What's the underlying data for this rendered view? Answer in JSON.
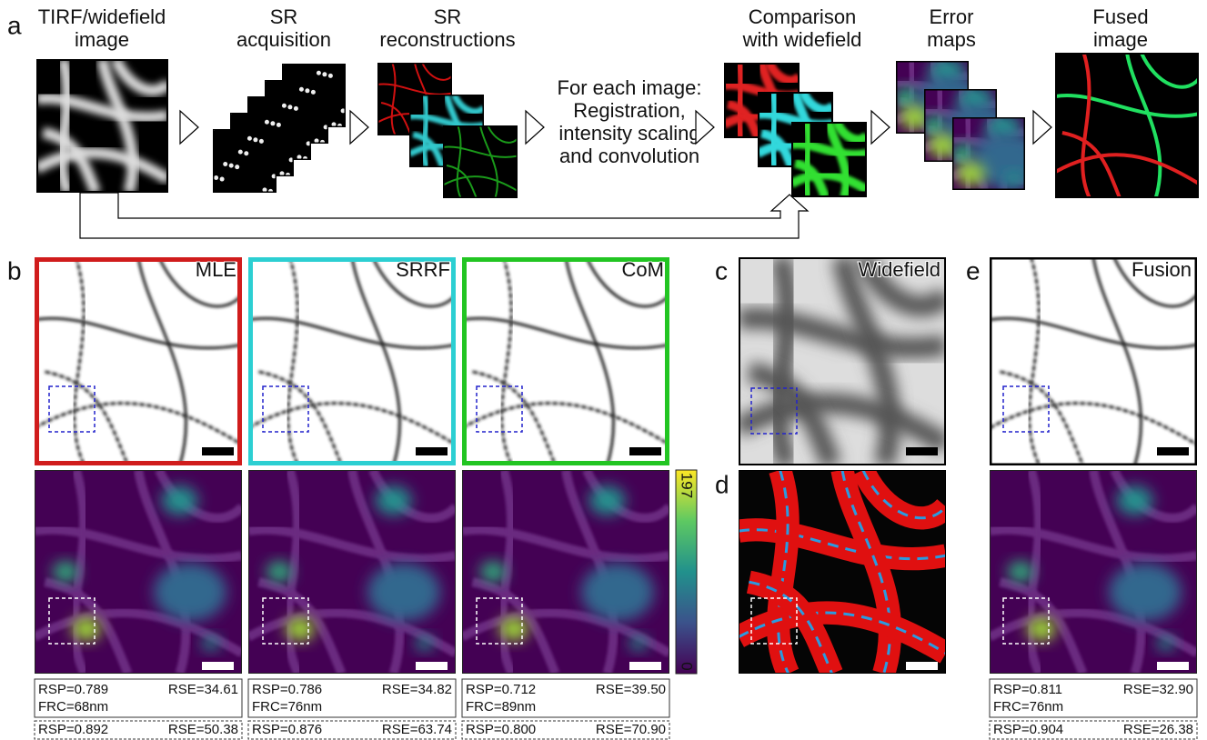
{
  "panel_a": {
    "label": "a",
    "steps": [
      [
        "TIRF/widefield",
        "image"
      ],
      [
        "SR",
        "acquisition"
      ],
      [
        "SR",
        "reconstructions"
      ],
      [
        "For each image:",
        "Registration,",
        "intensity scaling",
        "and convolution"
      ],
      [
        "Comparison",
        "with widefield"
      ],
      [
        "Error",
        "maps"
      ],
      [
        "Fused",
        "image"
      ]
    ]
  },
  "panel_b": {
    "label": "b",
    "methods": [
      {
        "name": "MLE",
        "color": "#d01c1c",
        "metrics": {
          "rsp": "RSP=0.789",
          "rse": "RSE=34.61",
          "frc": "FRC=68nm"
        },
        "roi_metrics": {
          "rsp": "RSP=0.892",
          "rse": "RSE=50.38"
        }
      },
      {
        "name": "SRRF",
        "color": "#2ccfd2",
        "metrics": {
          "rsp": "RSP=0.786",
          "rse": "RSE=34.82",
          "frc": "FRC=76nm"
        },
        "roi_metrics": {
          "rsp": "RSP=0.876",
          "rse": "RSE=63.74"
        }
      },
      {
        "name": "CoM",
        "color": "#22c522",
        "metrics": {
          "rsp": "RSP=0.712",
          "rse": "RSE=39.50",
          "frc": "FRC=89nm"
        },
        "roi_metrics": {
          "rsp": "RSP=0.800",
          "rse": "RSE=70.90"
        }
      }
    ],
    "colorbar": {
      "max": 197,
      "min": 0
    }
  },
  "panel_c": {
    "label": "c",
    "name": "Widefield"
  },
  "panel_d": {
    "label": "d"
  },
  "panel_e": {
    "label": "e",
    "name": "Fusion",
    "metrics": {
      "rsp": "RSP=0.811",
      "rse": "RSE=32.90",
      "frc": "FRC=76nm"
    },
    "roi_metrics": {
      "rsp": "RSP=0.904",
      "rse": "RSE=26.38"
    }
  }
}
